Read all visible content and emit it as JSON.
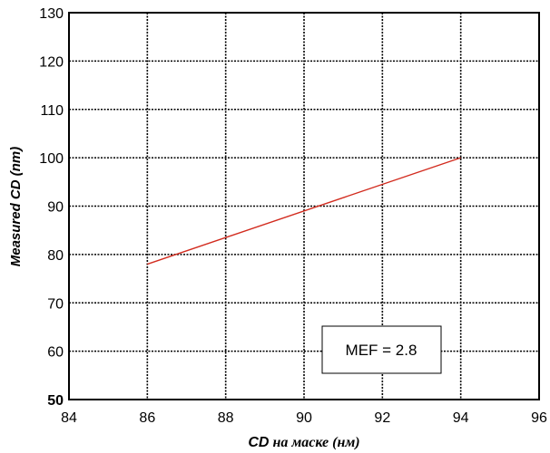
{
  "chart_data": {
    "type": "line",
    "xlabel_bold": "CD",
    "xlabel_rest": " на маске (нм)",
    "ylabel": "Measured CD (nm)",
    "xlim": [
      84,
      96
    ],
    "ylim": [
      50,
      130
    ],
    "x_ticks": [
      84,
      86,
      88,
      90,
      92,
      94,
      96
    ],
    "y_ticks": [
      50,
      60,
      70,
      80,
      90,
      100,
      110,
      120,
      130
    ],
    "grid": true,
    "series": [
      {
        "x": [
          86,
          94
        ],
        "y": [
          78,
          100
        ],
        "color": "#d22b1e"
      }
    ],
    "annotation": "MEF = 2.8"
  }
}
